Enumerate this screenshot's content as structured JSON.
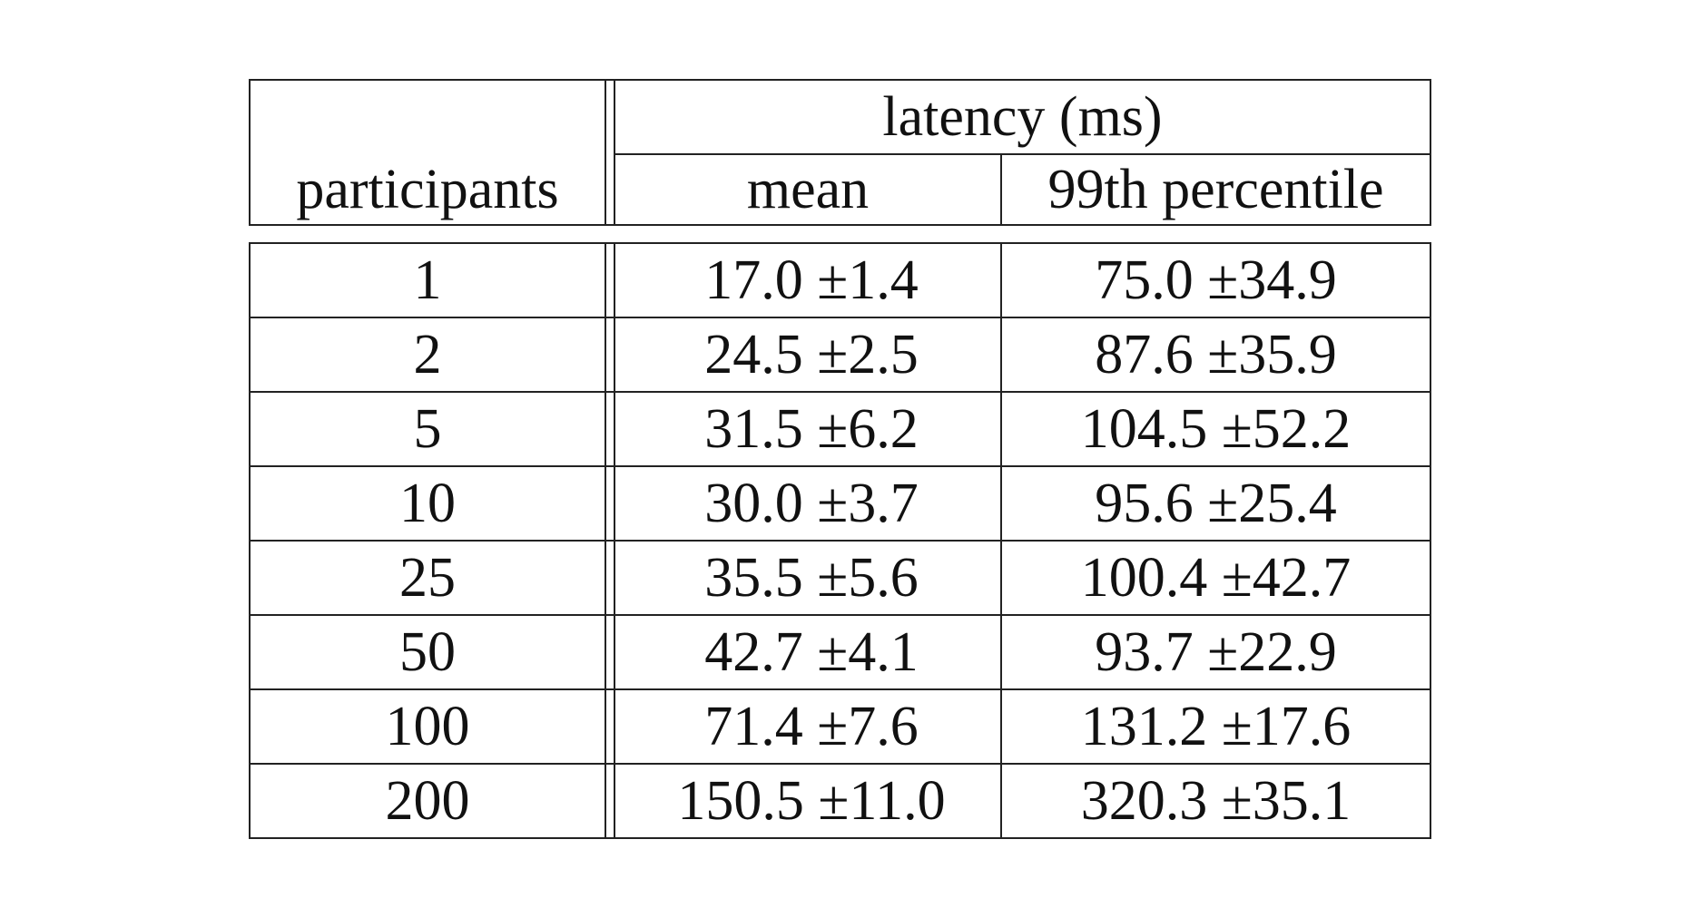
{
  "table": {
    "header": {
      "participants": "participants",
      "group": "latency (ms)",
      "mean": "mean",
      "p99": "99th percentile"
    },
    "rows": [
      {
        "participants": "1",
        "mean": "17.0 ±1.4",
        "p99": "75.0 ±34.9"
      },
      {
        "participants": "2",
        "mean": "24.5 ±2.5",
        "p99": "87.6 ±35.9"
      },
      {
        "participants": "5",
        "mean": "31.5 ±6.2",
        "p99": "104.5 ±52.2"
      },
      {
        "participants": "10",
        "mean": "30.0 ±3.7",
        "p99": "95.6 ±25.4"
      },
      {
        "participants": "25",
        "mean": "35.5 ±5.6",
        "p99": "100.4 ±42.7"
      },
      {
        "participants": "50",
        "mean": "42.7 ±4.1",
        "p99": "93.7 ±22.9"
      },
      {
        "participants": "100",
        "mean": "71.4 ±7.6",
        "p99": "131.2 ±17.6"
      },
      {
        "participants": "200",
        "mean": "150.5 ±11.0",
        "p99": "320.3 ±35.1"
      }
    ]
  }
}
